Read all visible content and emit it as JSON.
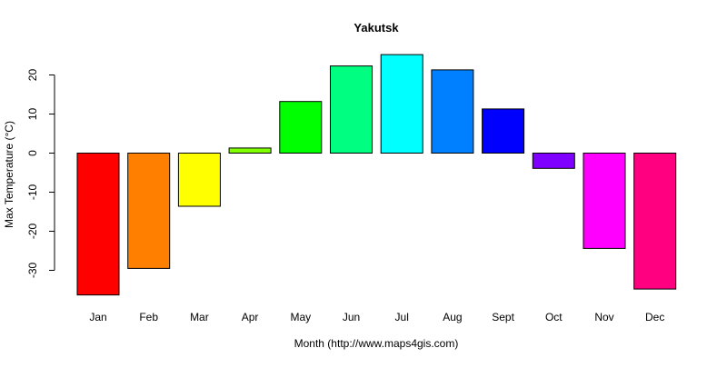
{
  "chart_data": {
    "type": "bar",
    "title": "Yakutsk",
    "xlabel": "Month (http://www.maps4gis.com)",
    "ylabel": "Max Temperature (°C)",
    "categories": [
      "Jan",
      "Feb",
      "Mar",
      "Apr",
      "May",
      "Jun",
      "Jul",
      "Aug",
      "Sept",
      "Oct",
      "Nov",
      "Dec"
    ],
    "values": [
      -36.3,
      -29.5,
      -13.6,
      1.3,
      13.2,
      22.3,
      25.2,
      21.3,
      11.3,
      -3.9,
      -24.4,
      -34.8
    ],
    "colors": [
      "#FF0000",
      "#FF8000",
      "#FFFF00",
      "#80FF00",
      "#00FF00",
      "#00FF80",
      "#00FFFF",
      "#0080FF",
      "#0000FF",
      "#8000FF",
      "#FF00FF",
      "#FF0080"
    ],
    "yticks": [
      -30,
      -20,
      -10,
      0,
      10,
      20
    ],
    "ylim": [
      -38,
      27
    ],
    "grid": false,
    "legend": "none"
  }
}
